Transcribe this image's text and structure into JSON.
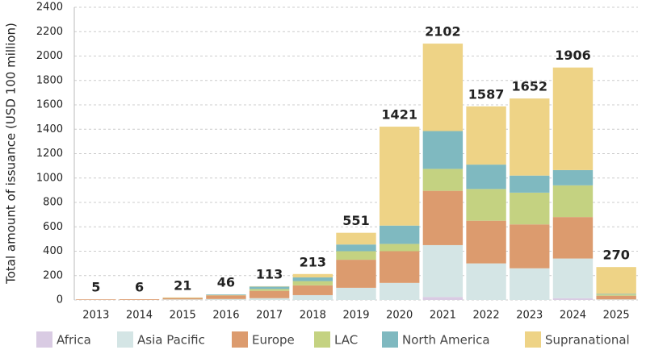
{
  "chart_data": {
    "type": "stacked_bar",
    "y_label": "Total amount of issuance (USD 100 million)",
    "categories": [
      "2013",
      "2014",
      "2015",
      "2016",
      "2017",
      "2018",
      "2019",
      "2020",
      "2021",
      "2022",
      "2023",
      "2024",
      "2025"
    ],
    "series": [
      {
        "name": "Africa",
        "color": "#d9cbe3",
        "values": [
          0,
          0,
          0,
          0,
          0,
          0,
          0,
          0,
          25,
          0,
          0,
          15,
          0
        ]
      },
      {
        "name": "Asia Pacific",
        "color": "#d4e5e5",
        "values": [
          0,
          0,
          5,
          8,
          15,
          40,
          100,
          140,
          425,
          300,
          260,
          325,
          5
        ]
      },
      {
        "name": "Europe",
        "color": "#dc9b6e",
        "values": [
          5,
          6,
          12,
          30,
          60,
          80,
          230,
          260,
          445,
          350,
          360,
          340,
          30
        ]
      },
      {
        "name": "LAC",
        "color": "#c4d281",
        "values": [
          0,
          0,
          2,
          3,
          15,
          35,
          70,
          60,
          180,
          260,
          260,
          260,
          10
        ]
      },
      {
        "name": "North America",
        "color": "#7fb9c0",
        "values": [
          0,
          0,
          0,
          5,
          20,
          30,
          55,
          150,
          310,
          200,
          140,
          125,
          5
        ]
      },
      {
        "name": "Supranational",
        "color": "#eed386",
        "values": [
          0,
          0,
          2,
          0,
          3,
          28,
          96,
          811,
          717,
          477,
          632,
          841,
          220
        ]
      }
    ],
    "totals": [
      5,
      6,
      21,
      46,
      113,
      213,
      551,
      1421,
      2102,
      1587,
      1652,
      1906,
      270
    ],
    "ylim": [
      0,
      2400
    ],
    "yticks": [
      0,
      200,
      400,
      600,
      800,
      1000,
      1200,
      1400,
      1600,
      1800,
      2000,
      2200,
      2400
    ],
    "grid": true
  }
}
